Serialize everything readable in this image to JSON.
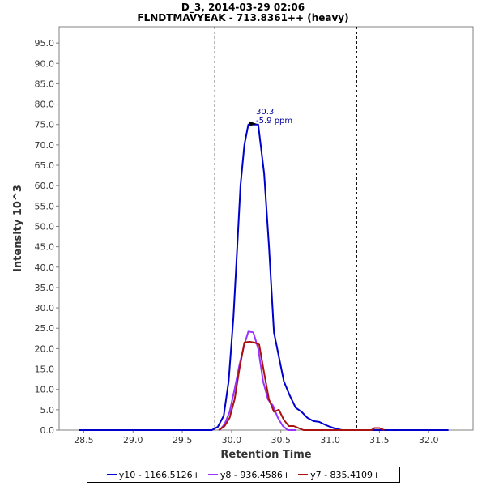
{
  "title_line1": "D_3, 2014-03-29 02:06",
  "title_line2": "FLNDTMAVYEAK - 713.8361++ (heavy)",
  "chart_data": {
    "type": "line",
    "xlabel": "Retention Time",
    "ylabel": "Intensity 10^3",
    "xlim": [
      28.25,
      32.45
    ],
    "ylim": [
      0,
      99
    ],
    "x_ticks": [
      "28.5",
      "29.0",
      "29.5",
      "30.0",
      "30.5",
      "31.0",
      "31.5",
      "32.0"
    ],
    "x_tick_values": [
      28.5,
      29.0,
      29.5,
      30.0,
      30.5,
      31.0,
      31.5,
      32.0
    ],
    "y_ticks": [
      "0.0",
      "5.0",
      "10.0",
      "15.0",
      "20.0",
      "25.0",
      "30.0",
      "35.0",
      "40.0",
      "45.0",
      "50.0",
      "55.0",
      "60.0",
      "65.0",
      "70.0",
      "75.0",
      "80.0",
      "85.0",
      "90.0",
      "95.0"
    ],
    "y_tick_values": [
      0,
      5,
      10,
      15,
      20,
      25,
      30,
      35,
      40,
      45,
      50,
      55,
      60,
      65,
      70,
      75,
      80,
      85,
      90,
      95
    ],
    "grid": false,
    "boundaries": [
      29.83,
      31.27
    ],
    "peak_annotation": {
      "x": 30.22,
      "y": 75.2,
      "label_line1": "30.3",
      "label_line2": "-5.9 ppm"
    },
    "legend_position": "bottom",
    "series": [
      {
        "name": "y10 - 1166.5126+",
        "color": "#0000cc",
        "points": [
          [
            28.45,
            0
          ],
          [
            29.8,
            0
          ],
          [
            29.86,
            0.8
          ],
          [
            29.92,
            3.5
          ],
          [
            29.97,
            12
          ],
          [
            30.02,
            28
          ],
          [
            30.06,
            46
          ],
          [
            30.09,
            60
          ],
          [
            30.13,
            70
          ],
          [
            30.17,
            75
          ],
          [
            30.22,
            75
          ],
          [
            30.27,
            75
          ],
          [
            30.33,
            63
          ],
          [
            30.38,
            45
          ],
          [
            30.43,
            24
          ],
          [
            30.48,
            18
          ],
          [
            30.53,
            12
          ],
          [
            30.59,
            8.5
          ],
          [
            30.65,
            5.5
          ],
          [
            30.71,
            4.5
          ],
          [
            30.77,
            3
          ],
          [
            30.83,
            2.2
          ],
          [
            30.89,
            2
          ],
          [
            30.95,
            1.3
          ],
          [
            31.0,
            0.8
          ],
          [
            31.06,
            0.3
          ],
          [
            31.12,
            0
          ],
          [
            32.2,
            0
          ]
        ]
      },
      {
        "name": "y8 - 936.4586+",
        "color": "#9933ff",
        "points": [
          [
            29.88,
            0
          ],
          [
            29.93,
            1.5
          ],
          [
            29.98,
            4.5
          ],
          [
            30.03,
            10
          ],
          [
            30.08,
            16
          ],
          [
            30.13,
            21
          ],
          [
            30.17,
            24.2
          ],
          [
            30.22,
            24
          ],
          [
            30.27,
            20
          ],
          [
            30.32,
            12
          ],
          [
            30.37,
            7.5
          ],
          [
            30.42,
            6
          ],
          [
            30.47,
            3
          ],
          [
            30.52,
            1
          ],
          [
            30.57,
            0
          ],
          [
            30.65,
            0
          ]
        ]
      },
      {
        "name": "y7 - 835.4109+",
        "color": "#aa1111",
        "points": [
          [
            29.87,
            0
          ],
          [
            29.93,
            1
          ],
          [
            29.98,
            3
          ],
          [
            30.03,
            7.5
          ],
          [
            30.08,
            15
          ],
          [
            30.13,
            21.5
          ],
          [
            30.18,
            21.7
          ],
          [
            30.23,
            21.5
          ],
          [
            30.28,
            21
          ],
          [
            30.33,
            14
          ],
          [
            30.38,
            7.5
          ],
          [
            30.43,
            4.5
          ],
          [
            30.48,
            5
          ],
          [
            30.53,
            2.5
          ],
          [
            30.58,
            1
          ],
          [
            30.63,
            1
          ],
          [
            30.68,
            0.5
          ],
          [
            30.73,
            0
          ],
          [
            30.78,
            0
          ],
          [
            31.42,
            0
          ],
          [
            31.45,
            0.5
          ],
          [
            31.5,
            0.5
          ],
          [
            31.55,
            0
          ]
        ]
      }
    ]
  }
}
